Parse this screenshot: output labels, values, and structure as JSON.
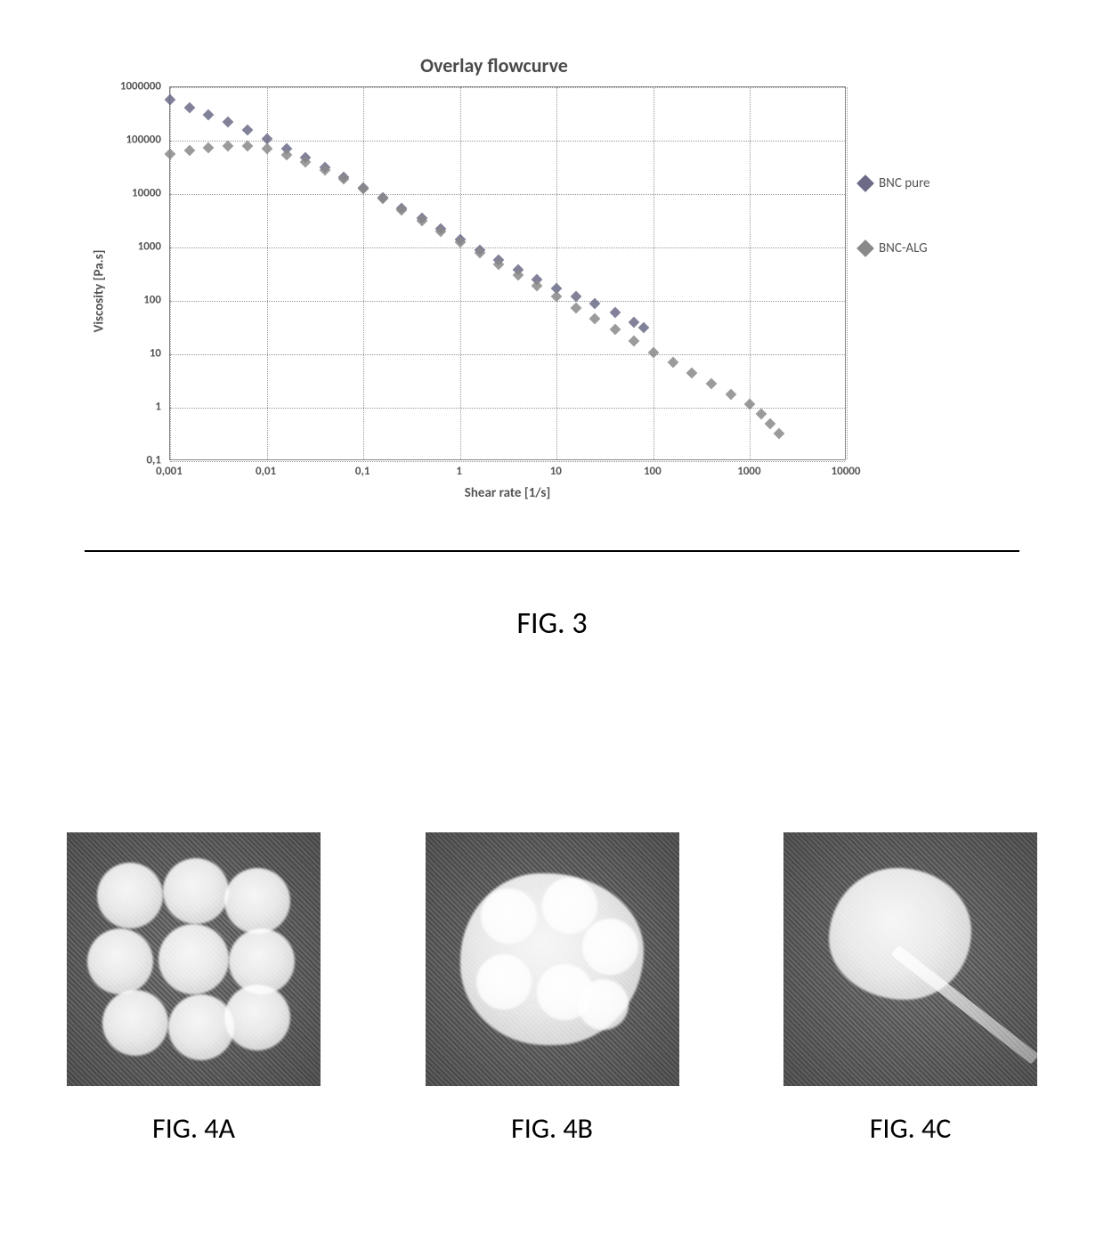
{
  "chart": {
    "type": "scatter",
    "title": "Overlay flowcurve",
    "xlabel": "Shear rate [1/s]",
    "ylabel": "Viscosity [Pa.s]",
    "xscale": "log",
    "yscale": "log",
    "xlim": [
      0.001,
      10000
    ],
    "ylim": [
      0.1,
      1000000
    ],
    "xticks": [
      "0,001",
      "0,01",
      "0,1",
      "1",
      "10",
      "100",
      "1000",
      "10000"
    ],
    "yticks": [
      "0,1",
      "1",
      "10",
      "100",
      "1000",
      "10000",
      "100000",
      "1000000"
    ],
    "background_color": "#ffffff",
    "grid_color": "#999999",
    "grid_style": "dotted",
    "border_color": "#888888",
    "title_fontsize": 22,
    "label_fontsize": 15,
    "tick_fontsize": 13,
    "marker_shape": "diamond",
    "marker_size": 9,
    "legend_position": "right",
    "series": [
      {
        "name": "BNC pure",
        "color": "#6b6b88",
        "x": [
          0.001,
          0.0016,
          0.0025,
          0.004,
          0.0063,
          0.01,
          0.016,
          0.025,
          0.04,
          0.063,
          0.1,
          0.16,
          0.25,
          0.4,
          0.63,
          1,
          1.6,
          2.5,
          4,
          6.3,
          10,
          16,
          25,
          40,
          63,
          80
        ],
        "y": [
          580000,
          420000,
          300000,
          220000,
          160000,
          110000,
          70000,
          48000,
          32000,
          21000,
          13000,
          8500,
          5400,
          3500,
          2200,
          1400,
          900,
          580,
          380,
          250,
          170,
          120,
          88,
          60,
          40,
          32
        ]
      },
      {
        "name": "BNC-ALG",
        "color": "#8a8a8a",
        "x": [
          0.001,
          0.0016,
          0.0025,
          0.004,
          0.0063,
          0.01,
          0.016,
          0.025,
          0.04,
          0.063,
          0.1,
          0.16,
          0.25,
          0.4,
          0.63,
          1,
          1.6,
          2.5,
          4,
          6.3,
          10,
          16,
          25,
          40,
          63,
          100,
          160,
          250,
          400,
          630,
          1000,
          1300,
          1600,
          2000
        ],
        "y": [
          56000,
          65000,
          73000,
          78000,
          80000,
          72000,
          55000,
          40000,
          28000,
          19000,
          12500,
          8100,
          5100,
          3200,
          2000,
          1250,
          780,
          490,
          300,
          190,
          120,
          74,
          46,
          29,
          18,
          11,
          7,
          4.4,
          2.8,
          1.8,
          1.15,
          0.75,
          0.5,
          0.33
        ]
      }
    ]
  },
  "figure3_caption": "FIG. 3",
  "panels": {
    "a": {
      "caption": "FIG. 4A"
    },
    "b": {
      "caption": "FIG. 4B"
    },
    "c": {
      "caption": "FIG. 4C"
    }
  }
}
